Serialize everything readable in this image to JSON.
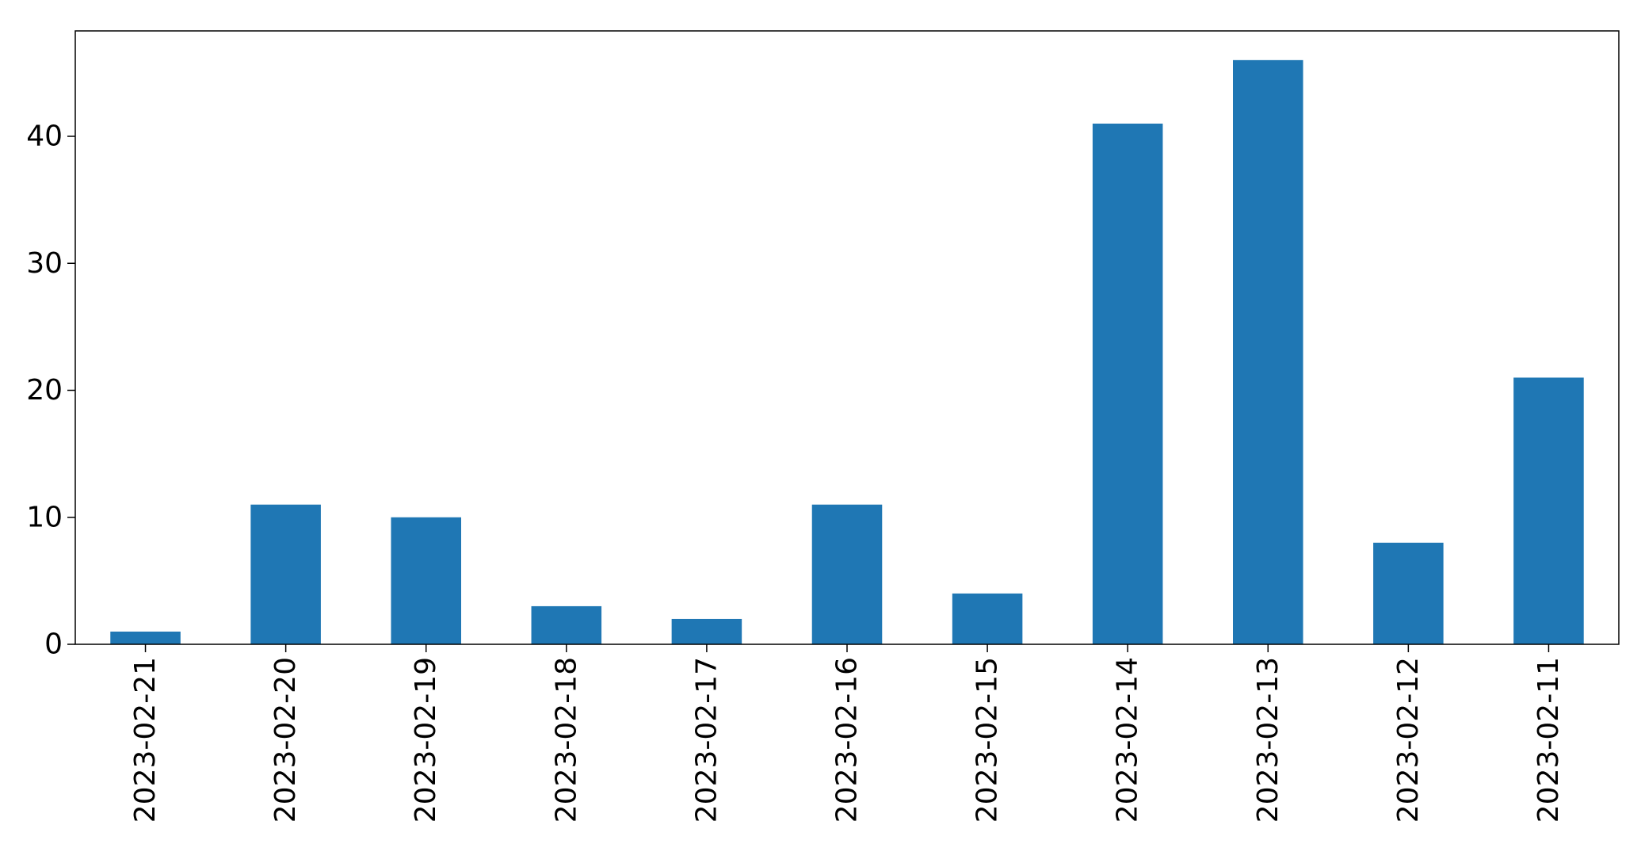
{
  "chart_data": {
    "type": "bar",
    "title": "",
    "xlabel": "",
    "ylabel": "",
    "categories": [
      "2023-02-21",
      "2023-02-20",
      "2023-02-19",
      "2023-02-18",
      "2023-02-17",
      "2023-02-16",
      "2023-02-15",
      "2023-02-14",
      "2023-02-13",
      "2023-02-12",
      "2023-02-11"
    ],
    "values": [
      1,
      11,
      10,
      3,
      2,
      11,
      4,
      41,
      46,
      8,
      21
    ],
    "ylim": [
      0,
      48.3
    ],
    "yticks": [
      0,
      10,
      20,
      30,
      40
    ],
    "grid": false,
    "legend": "none",
    "bar_color": "#1f77b4"
  }
}
